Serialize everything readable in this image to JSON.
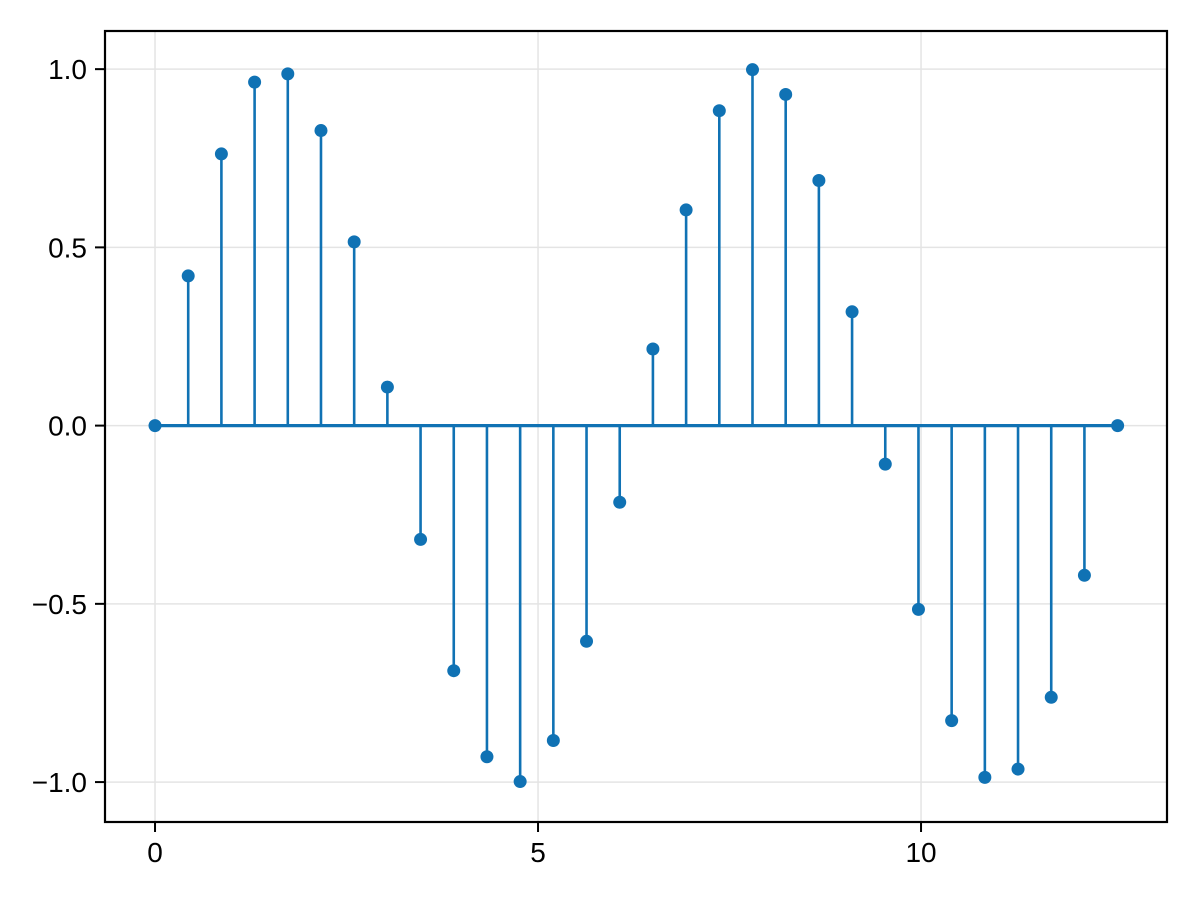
{
  "figure": {
    "background": "#ffffff"
  },
  "chart_data": {
    "type": "stem",
    "title": "",
    "xlabel": "",
    "ylabel": "",
    "x": [
      0.0,
      0.4333,
      0.8666,
      1.3,
      1.7333,
      2.1666,
      2.5999,
      3.0333,
      3.4666,
      3.8999,
      4.3332,
      4.7666,
      5.1999,
      5.6332,
      6.0665,
      6.4998,
      6.9332,
      7.3665,
      7.7998,
      8.2331,
      8.6664,
      9.0998,
      9.5331,
      9.9664,
      10.3997,
      10.8331,
      11.2664,
      11.6997,
      12.133,
      12.5664
    ],
    "y": [
      0.0,
      0.4199,
      0.7622,
      0.9635,
      0.9868,
      0.8277,
      0.5155,
      0.1081,
      -0.3193,
      -0.6876,
      -0.929,
      -0.9985,
      -0.8834,
      -0.6051,
      -0.215,
      0.215,
      0.6051,
      0.8834,
      0.9985,
      0.929,
      0.6876,
      0.3193,
      -0.1081,
      -0.5155,
      -0.8277,
      -0.9868,
      -0.9635,
      -0.7622,
      -0.4199,
      0.0
    ],
    "baseline_value": 0.0,
    "xticks": {
      "values": [
        0,
        5,
        10
      ],
      "labels": [
        "0",
        "5",
        "10"
      ]
    },
    "yticks": {
      "values": [
        -1.0,
        -0.5,
        0.0,
        0.5,
        1.0
      ],
      "labels": [
        "−1.0",
        "−0.5",
        "0.0",
        "0.5",
        "1.0"
      ]
    },
    "xlim": [
      -0.653,
      13.211
    ],
    "ylim": [
      -1.112,
      1.107
    ],
    "grid": true,
    "legend": null,
    "colors": {
      "stem": "#1072b4",
      "marker": "#1072b4",
      "baseline": "#1072b4",
      "grid": "#e4e4e4",
      "spine": "#000000",
      "tick": "#000000",
      "tick_label": "#000000",
      "background": "#ffffff"
    }
  }
}
